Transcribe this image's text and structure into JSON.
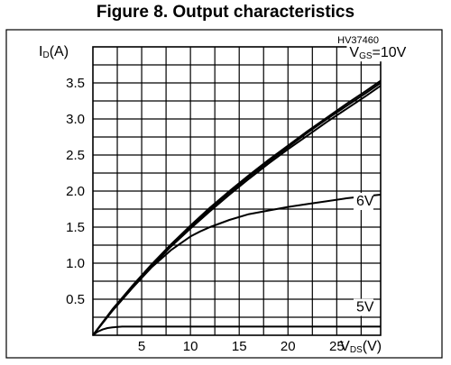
{
  "title": "Figure 8. Output characteristics",
  "chart_data": {
    "type": "line",
    "reference": "HV37460",
    "ylabel": {
      "main": "I",
      "sub": "D",
      "unit": "(A)"
    },
    "xlabel": {
      "main": "V",
      "sub": "DS",
      "unit": "(V)"
    },
    "xlim": [
      0,
      29.5
    ],
    "ylim": [
      0,
      4.0
    ],
    "grid": true,
    "xticks": [
      5,
      10,
      15,
      20,
      25
    ],
    "yticks": [
      0.5,
      1.0,
      1.5,
      2.0,
      2.5,
      3.0,
      3.5
    ],
    "xtick_labels": [
      "5",
      "10",
      "15",
      "20",
      "25"
    ],
    "ytick_labels": [
      "0.5",
      "1.0",
      "1.5",
      "2.0",
      "2.5",
      "3.0",
      "3.5"
    ],
    "series": [
      {
        "name": "VGS=10V",
        "label_parts": {
          "main": "V",
          "sub": "GS",
          "rest": "=10V"
        },
        "label_at": [
          26.3,
          3.86
        ],
        "x": [
          0,
          2,
          4,
          6,
          8,
          10,
          12,
          14,
          16,
          18,
          20,
          22,
          24,
          26,
          28,
          29.5
        ],
        "y": [
          0,
          0.36,
          0.68,
          0.98,
          1.26,
          1.52,
          1.77,
          2.0,
          2.22,
          2.43,
          2.63,
          2.83,
          3.02,
          3.21,
          3.39,
          3.53
        ]
      },
      {
        "name": "",
        "label_parts": null,
        "x": [
          0,
          2,
          4,
          6,
          8,
          10,
          12,
          14,
          16,
          18,
          20,
          22,
          24,
          26,
          28,
          29.5
        ],
        "y": [
          0,
          0.35,
          0.67,
          0.97,
          1.25,
          1.5,
          1.75,
          1.98,
          2.2,
          2.41,
          2.61,
          2.81,
          3.0,
          3.18,
          3.36,
          3.5
        ]
      },
      {
        "name": "",
        "label_parts": null,
        "x": [
          0,
          2,
          4,
          6,
          8,
          10,
          12,
          14,
          16,
          18,
          20,
          22,
          24,
          26,
          28,
          29.5
        ],
        "y": [
          0,
          0.34,
          0.65,
          0.95,
          1.23,
          1.48,
          1.72,
          1.95,
          2.17,
          2.38,
          2.58,
          2.77,
          2.96,
          3.14,
          3.32,
          3.46
        ]
      },
      {
        "name": "6V",
        "label_parts": {
          "main": "6V",
          "sub": "",
          "rest": ""
        },
        "label_at": [
          27.0,
          1.8
        ],
        "x": [
          0,
          2,
          4,
          6,
          8,
          10,
          11,
          12,
          14,
          16,
          18,
          20,
          22,
          24,
          26,
          28,
          29.5
        ],
        "y": [
          0,
          0.34,
          0.65,
          0.94,
          1.18,
          1.37,
          1.44,
          1.5,
          1.6,
          1.68,
          1.73,
          1.78,
          1.82,
          1.86,
          1.9,
          1.93,
          1.95
        ]
      },
      {
        "name": "5V",
        "label_parts": {
          "main": "5V",
          "sub": "",
          "rest": ""
        },
        "label_at": [
          27.0,
          0.33
        ],
        "x": [
          0,
          0.5,
          1,
          1.5,
          2,
          3,
          4,
          6,
          10,
          15,
          20,
          25,
          29.5
        ],
        "y": [
          0,
          0.05,
          0.08,
          0.1,
          0.11,
          0.12,
          0.12,
          0.12,
          0.12,
          0.12,
          0.12,
          0.12,
          0.12
        ]
      }
    ]
  }
}
